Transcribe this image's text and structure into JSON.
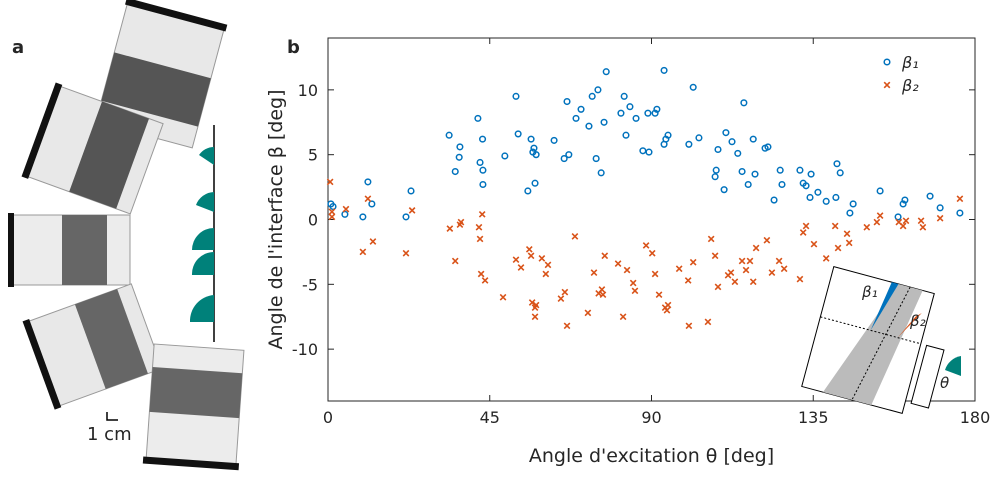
{
  "figure": {
    "panel_a_label": "a",
    "panel_b_label": "b",
    "scale_bar": "1 cm",
    "inset": {
      "beta1": "β₁",
      "beta2": "β₂",
      "theta": "θ"
    }
  },
  "chart_data": {
    "type": "scatter",
    "xlabel": "Angle d'excitation θ [deg]",
    "ylabel": "Angle de l'interface β  [deg]",
    "xlim": [
      0,
      180
    ],
    "ylim": [
      -14,
      14
    ],
    "xticks": [
      0,
      45,
      90,
      135,
      180
    ],
    "yticks": [
      -10,
      -5,
      0,
      5,
      10
    ],
    "grid": false,
    "legend": "upper right",
    "series": [
      {
        "name": "β₁",
        "color": "#0072BD",
        "marker": "circle",
        "x": [
          0.8,
          1.4,
          4.7,
          9.7,
          11.1,
          12.2,
          21.7,
          23.1,
          33.7,
          35.4,
          36.5,
          36.7,
          41.7,
          42.3,
          43,
          43.1,
          43.1,
          49.2,
          52.3,
          52.9,
          55.6,
          56.5,
          57,
          57.3,
          57.6,
          57.9,
          62.9,
          65.7,
          66.5,
          67,
          69,
          70.4,
          72.6,
          73.5,
          74.6,
          75.1,
          76,
          76.8,
          77.4,
          81.5,
          82.4,
          82.9,
          84,
          85.7,
          87.6,
          89,
          89.3,
          91,
          91.5,
          93.5,
          93.5,
          94,
          94.6,
          100.4,
          101.6,
          103.2,
          107.7,
          108,
          108.5,
          110.2,
          110.7,
          112.4,
          114,
          115.2,
          115.7,
          116.9,
          118.3,
          118.8,
          121.6,
          122.4,
          124.1,
          125.8,
          126.3,
          131.3,
          132.2,
          133,
          134.1,
          134.4,
          136.3,
          138.6,
          141.3,
          141.6,
          142.5,
          145.2,
          146.1,
          153.6,
          158.6,
          160,
          160.5,
          167.5,
          170.3,
          175.8
        ],
        "values": [
          1.2,
          1,
          0.4,
          0.2,
          2.9,
          1.2,
          0.2,
          2.2,
          6.5,
          3.7,
          4.8,
          5.6,
          7.8,
          4.4,
          6.2,
          3.8,
          2.7,
          4.9,
          9.5,
          6.6,
          2.2,
          6.2,
          5.2,
          5.5,
          2.8,
          5,
          6.1,
          4.7,
          9.1,
          5,
          7.8,
          8.5,
          7.2,
          9.5,
          4.7,
          10,
          3.6,
          7.5,
          11.4,
          8.2,
          9.5,
          6.5,
          8.7,
          7.8,
          5.3,
          8.2,
          5.2,
          8.2,
          8.5,
          11.5,
          5.8,
          6.2,
          6.5,
          5.8,
          10.2,
          6.3,
          3.3,
          3.8,
          5.4,
          2.3,
          6.7,
          6,
          5.1,
          3.7,
          9,
          2.7,
          6.2,
          3.5,
          5.5,
          5.6,
          1.5,
          3.8,
          2.7,
          3.8,
          2.8,
          2.6,
          1.7,
          3.5,
          2.1,
          1.4,
          1.7,
          4.3,
          3.6,
          0.5,
          1.2,
          2.2,
          0.2,
          1.2,
          1.5,
          1.8,
          0.9,
          0.5
        ]
      },
      {
        "name": "β₂",
        "color": "#D95319",
        "marker": "x",
        "x": [
          0.6,
          1.1,
          1.1,
          5,
          9.7,
          11.1,
          12.5,
          21.7,
          23.4,
          33.9,
          35.4,
          36.7,
          37,
          42,
          42.3,
          42.9,
          42.6,
          43.7,
          48.7,
          52.3,
          53.7,
          56,
          56.5,
          56.8,
          57.6,
          57.6,
          57.9,
          59.5,
          60.6,
          61.2,
          64.8,
          65.9,
          66.5,
          68.7,
          72.3,
          74,
          75.3,
          76.2,
          76.5,
          77,
          80.7,
          82.1,
          83.2,
          84.9,
          85.4,
          88.5,
          90.2,
          91,
          92.1,
          93.8,
          94.3,
          94.6,
          97.7,
          100.2,
          100.4,
          101.6,
          105.7,
          106.6,
          107.7,
          108.5,
          111.3,
          112.1,
          113.2,
          115.2,
          116.3,
          117.4,
          118.3,
          119.1,
          122.1,
          123.5,
          125.5,
          126.9,
          131.3,
          132.2,
          133,
          135.2,
          138.6,
          141.1,
          141.9,
          144.4,
          145,
          149.9,
          152.7,
          153.6,
          158.8,
          160,
          160.8,
          165,
          165.5,
          170.3,
          175.8
        ],
        "values": [
          2.9,
          0.6,
          0.2,
          0.8,
          -2.5,
          1.6,
          -1.7,
          -2.6,
          0.7,
          -0.7,
          -3.2,
          -0.4,
          -0.2,
          -0.6,
          -1.5,
          0.4,
          -4.2,
          -4.7,
          -6,
          -3.1,
          -3.7,
          -2.3,
          -2.8,
          -6.4,
          -6.8,
          -7.5,
          -6.6,
          -3,
          -4.2,
          -3.5,
          -6.1,
          -5.6,
          -8.2,
          -1.3,
          -7.2,
          -4.1,
          -5.7,
          -5.4,
          -5.8,
          -2.8,
          -3.4,
          -7.5,
          -3.9,
          -4.9,
          -5.5,
          -2,
          -2.6,
          -4.2,
          -5.8,
          -6.8,
          -7,
          -6.6,
          -3.8,
          -4.7,
          -8.2,
          -3.3,
          -7.9,
          -1.5,
          -2.8,
          -5.2,
          -4.3,
          -4.1,
          -4.8,
          -3.2,
          -3.9,
          -3.2,
          -4.8,
          -2.2,
          -1.6,
          -4.1,
          -3.2,
          -3.8,
          -4.6,
          -1,
          -0.5,
          -1.9,
          -3,
          -0.5,
          -2.2,
          -1.1,
          -1.8,
          -0.6,
          -0.2,
          0.3,
          -0.2,
          -0.5,
          -0.1,
          -0.1,
          -0.6,
          0.1,
          1.6
        ]
      }
    ]
  }
}
